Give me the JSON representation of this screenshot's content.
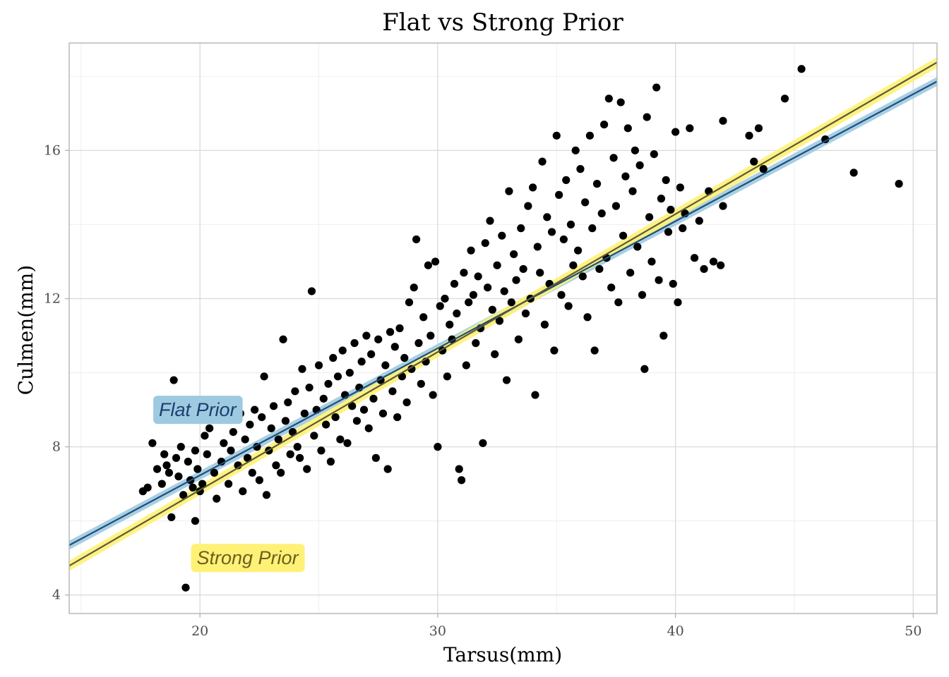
{
  "chart_data": {
    "type": "scatter",
    "title": "Flat vs Strong Prior",
    "xlabel": "Tarsus(mm)",
    "ylabel": "Culmen(mm)",
    "xlim": [
      14.5,
      51
    ],
    "ylim": [
      3.5,
      18.9
    ],
    "x_ticks": [
      20,
      30,
      40,
      50
    ],
    "y_ticks": [
      4,
      8,
      12,
      16
    ],
    "grid": true,
    "annotations": [
      {
        "text": "Flat Prior",
        "x": 19.9,
        "y": 9.0,
        "fill": "#9ecae1",
        "text_color": "#1c3f6e"
      },
      {
        "text": "Strong Prior",
        "x": 22.0,
        "y": 5.0,
        "fill": "#fff176",
        "text_color": "#6b6020"
      }
    ],
    "fit_lines": [
      {
        "name": "Flat Prior",
        "intercept": 0.37,
        "slope": 0.343,
        "ribbon_half_width": 0.12,
        "line_color": "#1f4e79",
        "ribbon_color": "#9ecae1"
      },
      {
        "name": "Strong Prior",
        "intercept": -0.61,
        "slope": 0.3723,
        "ribbon_half_width": 0.14,
        "line_color": "#5a5a3a",
        "ribbon_color": "#fff176"
      }
    ],
    "points": [
      [
        17.6,
        6.8
      ],
      [
        17.8,
        6.9
      ],
      [
        18.0,
        8.1
      ],
      [
        18.2,
        7.4
      ],
      [
        18.4,
        7.0
      ],
      [
        18.5,
        7.8
      ],
      [
        18.6,
        7.5
      ],
      [
        18.7,
        7.3
      ],
      [
        18.8,
        6.1
      ],
      [
        18.9,
        9.8
      ],
      [
        19.0,
        7.7
      ],
      [
        19.1,
        7.2
      ],
      [
        19.2,
        8.0
      ],
      [
        19.3,
        6.7
      ],
      [
        19.4,
        4.2
      ],
      [
        19.5,
        7.6
      ],
      [
        19.6,
        7.1
      ],
      [
        19.7,
        6.9
      ],
      [
        19.8,
        7.9
      ],
      [
        19.8,
        6.0
      ],
      [
        19.9,
        7.4
      ],
      [
        20.0,
        6.8
      ],
      [
        20.1,
        7.0
      ],
      [
        20.2,
        8.3
      ],
      [
        20.3,
        7.8
      ],
      [
        20.4,
        8.5
      ],
      [
        20.5,
        9.0
      ],
      [
        20.6,
        7.3
      ],
      [
        20.7,
        6.6
      ],
      [
        20.8,
        9.2
      ],
      [
        20.9,
        7.6
      ],
      [
        21.0,
        8.1
      ],
      [
        21.2,
        7.0
      ],
      [
        21.3,
        7.9
      ],
      [
        21.4,
        8.4
      ],
      [
        21.6,
        7.5
      ],
      [
        21.7,
        8.9
      ],
      [
        21.8,
        6.8
      ],
      [
        21.9,
        8.2
      ],
      [
        22.0,
        7.7
      ],
      [
        22.1,
        8.6
      ],
      [
        22.2,
        7.3
      ],
      [
        22.3,
        9.0
      ],
      [
        22.4,
        8.0
      ],
      [
        22.5,
        7.1
      ],
      [
        22.6,
        8.8
      ],
      [
        22.7,
        9.9
      ],
      [
        22.8,
        6.7
      ],
      [
        22.9,
        7.9
      ],
      [
        23.0,
        8.5
      ],
      [
        23.1,
        9.1
      ],
      [
        23.2,
        7.5
      ],
      [
        23.3,
        8.2
      ],
      [
        23.4,
        7.3
      ],
      [
        23.5,
        10.9
      ],
      [
        23.6,
        8.7
      ],
      [
        23.7,
        9.2
      ],
      [
        23.8,
        7.8
      ],
      [
        23.9,
        8.4
      ],
      [
        24.0,
        9.5
      ],
      [
        24.1,
        8.0
      ],
      [
        24.2,
        7.7
      ],
      [
        24.3,
        10.1
      ],
      [
        24.4,
        8.9
      ],
      [
        24.5,
        7.4
      ],
      [
        24.6,
        9.6
      ],
      [
        24.7,
        12.2
      ],
      [
        24.8,
        8.3
      ],
      [
        24.9,
        9.0
      ],
      [
        25.0,
        10.2
      ],
      [
        25.1,
        7.9
      ],
      [
        25.2,
        9.3
      ],
      [
        25.3,
        8.6
      ],
      [
        25.4,
        9.7
      ],
      [
        25.5,
        7.6
      ],
      [
        25.6,
        10.4
      ],
      [
        25.7,
        8.8
      ],
      [
        25.8,
        9.9
      ],
      [
        25.9,
        8.2
      ],
      [
        26.0,
        10.6
      ],
      [
        26.1,
        9.4
      ],
      [
        26.2,
        8.1
      ],
      [
        26.3,
        10.0
      ],
      [
        26.4,
        9.1
      ],
      [
        26.5,
        10.8
      ],
      [
        26.6,
        8.7
      ],
      [
        26.7,
        9.6
      ],
      [
        26.8,
        10.3
      ],
      [
        26.9,
        9.0
      ],
      [
        27.0,
        11.0
      ],
      [
        27.1,
        8.5
      ],
      [
        27.2,
        10.5
      ],
      [
        27.3,
        9.3
      ],
      [
        27.4,
        7.7
      ],
      [
        27.5,
        10.9
      ],
      [
        27.6,
        9.8
      ],
      [
        27.7,
        8.9
      ],
      [
        27.8,
        10.2
      ],
      [
        27.9,
        7.4
      ],
      [
        28.0,
        11.1
      ],
      [
        28.1,
        9.5
      ],
      [
        28.2,
        10.7
      ],
      [
        28.3,
        8.8
      ],
      [
        28.4,
        11.2
      ],
      [
        28.5,
        9.9
      ],
      [
        28.6,
        10.4
      ],
      [
        28.7,
        9.2
      ],
      [
        28.8,
        11.9
      ],
      [
        28.9,
        10.1
      ],
      [
        29.0,
        12.3
      ],
      [
        29.1,
        13.6
      ],
      [
        29.2,
        10.8
      ],
      [
        29.3,
        9.7
      ],
      [
        29.4,
        11.5
      ],
      [
        29.5,
        10.3
      ],
      [
        29.6,
        12.9
      ],
      [
        29.7,
        11.0
      ],
      [
        29.8,
        9.4
      ],
      [
        29.9,
        13.0
      ],
      [
        30.0,
        8.0
      ],
      [
        30.1,
        11.8
      ],
      [
        30.2,
        10.6
      ],
      [
        30.3,
        12.0
      ],
      [
        30.4,
        9.9
      ],
      [
        30.5,
        11.3
      ],
      [
        30.6,
        10.9
      ],
      [
        30.7,
        12.4
      ],
      [
        30.8,
        11.6
      ],
      [
        30.9,
        7.4
      ],
      [
        31.0,
        7.1
      ],
      [
        31.1,
        12.7
      ],
      [
        31.2,
        10.2
      ],
      [
        31.3,
        11.9
      ],
      [
        31.4,
        13.3
      ],
      [
        31.5,
        12.1
      ],
      [
        31.6,
        10.8
      ],
      [
        31.7,
        12.6
      ],
      [
        31.8,
        11.2
      ],
      [
        31.9,
        8.1
      ],
      [
        32.0,
        13.5
      ],
      [
        32.1,
        12.3
      ],
      [
        32.2,
        14.1
      ],
      [
        32.3,
        11.7
      ],
      [
        32.4,
        10.5
      ],
      [
        32.5,
        12.9
      ],
      [
        32.6,
        11.4
      ],
      [
        32.7,
        13.7
      ],
      [
        32.8,
        12.2
      ],
      [
        32.9,
        9.8
      ],
      [
        33.0,
        14.9
      ],
      [
        33.1,
        11.9
      ],
      [
        33.2,
        13.2
      ],
      [
        33.3,
        12.5
      ],
      [
        33.4,
        10.9
      ],
      [
        33.5,
        13.9
      ],
      [
        33.6,
        12.8
      ],
      [
        33.7,
        11.6
      ],
      [
        33.8,
        14.5
      ],
      [
        33.9,
        12.0
      ],
      [
        34.0,
        15.0
      ],
      [
        34.1,
        9.4
      ],
      [
        34.2,
        13.4
      ],
      [
        34.3,
        12.7
      ],
      [
        34.4,
        15.7
      ],
      [
        34.5,
        11.3
      ],
      [
        34.6,
        14.2
      ],
      [
        34.7,
        12.4
      ],
      [
        34.8,
        13.8
      ],
      [
        34.9,
        10.6
      ],
      [
        35.0,
        16.4
      ],
      [
        35.1,
        14.8
      ],
      [
        35.2,
        12.1
      ],
      [
        35.3,
        13.6
      ],
      [
        35.4,
        15.2
      ],
      [
        35.5,
        11.8
      ],
      [
        35.6,
        14.0
      ],
      [
        35.7,
        12.9
      ],
      [
        35.8,
        16.0
      ],
      [
        35.9,
        13.3
      ],
      [
        36.0,
        15.5
      ],
      [
        36.1,
        12.6
      ],
      [
        36.2,
        14.6
      ],
      [
        36.3,
        11.5
      ],
      [
        36.4,
        16.4
      ],
      [
        36.5,
        13.9
      ],
      [
        36.6,
        10.6
      ],
      [
        36.7,
        15.1
      ],
      [
        36.8,
        12.8
      ],
      [
        36.9,
        14.3
      ],
      [
        37.0,
        16.7
      ],
      [
        37.1,
        13.1
      ],
      [
        37.2,
        17.4
      ],
      [
        37.3,
        12.3
      ],
      [
        37.4,
        15.8
      ],
      [
        37.5,
        14.5
      ],
      [
        37.6,
        11.9
      ],
      [
        37.7,
        17.3
      ],
      [
        37.8,
        13.7
      ],
      [
        37.9,
        15.3
      ],
      [
        38.0,
        16.6
      ],
      [
        38.1,
        12.7
      ],
      [
        38.2,
        14.9
      ],
      [
        38.3,
        16.0
      ],
      [
        38.4,
        13.4
      ],
      [
        38.5,
        15.6
      ],
      [
        38.6,
        12.1
      ],
      [
        38.7,
        10.1
      ],
      [
        38.8,
        16.9
      ],
      [
        38.9,
        14.2
      ],
      [
        39.0,
        13.0
      ],
      [
        39.1,
        15.9
      ],
      [
        39.2,
        17.7
      ],
      [
        39.3,
        12.5
      ],
      [
        39.4,
        14.7
      ],
      [
        39.5,
        11.0
      ],
      [
        39.6,
        15.2
      ],
      [
        39.7,
        13.8
      ],
      [
        39.8,
        14.4
      ],
      [
        39.9,
        12.4
      ],
      [
        40.0,
        16.5
      ],
      [
        40.1,
        11.9
      ],
      [
        40.2,
        15.0
      ],
      [
        40.3,
        13.9
      ],
      [
        40.4,
        14.3
      ],
      [
        40.6,
        16.6
      ],
      [
        40.8,
        13.1
      ],
      [
        41.0,
        14.1
      ],
      [
        41.2,
        12.8
      ],
      [
        41.4,
        14.9
      ],
      [
        41.6,
        13.0
      ],
      [
        41.9,
        12.9
      ],
      [
        42.0,
        14.5
      ],
      [
        42.0,
        16.8
      ],
      [
        43.1,
        16.4
      ],
      [
        43.3,
        15.7
      ],
      [
        43.5,
        16.6
      ],
      [
        43.7,
        15.5
      ],
      [
        44.6,
        17.4
      ],
      [
        45.3,
        18.2
      ],
      [
        46.3,
        16.3
      ],
      [
        47.5,
        15.4
      ],
      [
        49.4,
        15.1
      ]
    ]
  }
}
